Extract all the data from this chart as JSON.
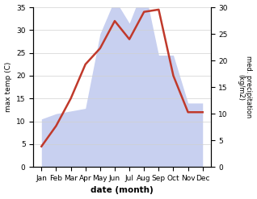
{
  "months": [
    "Jan",
    "Feb",
    "Mar",
    "Apr",
    "May",
    "Jun",
    "Jul",
    "Aug",
    "Sep",
    "Oct",
    "Nov",
    "Dec"
  ],
  "temperature": [
    4.5,
    9.0,
    15.0,
    22.5,
    26.0,
    32.0,
    28.0,
    34.0,
    34.5,
    20.0,
    12.0,
    12.0
  ],
  "precipitation": [
    9.0,
    10.0,
    10.5,
    11.0,
    25.0,
    31.5,
    27.0,
    34.0,
    21.0,
    21.0,
    12.0,
    12.0
  ],
  "temp_color": "#c0392b",
  "precip_fill_color": "#c8d0f0",
  "temp_ylim": [
    0,
    35
  ],
  "precip_ylim": [
    0,
    30
  ],
  "temp_yticks": [
    0,
    5,
    10,
    15,
    20,
    25,
    30,
    35
  ],
  "precip_yticks": [
    0,
    5,
    10,
    15,
    20,
    25,
    30
  ],
  "xlabel": "date (month)",
  "ylabel_left": "max temp (C)",
  "ylabel_right": "med. precipitation\n(kg/m2)",
  "bg_color": "#ffffff",
  "grid_color": "#d0d0d0"
}
